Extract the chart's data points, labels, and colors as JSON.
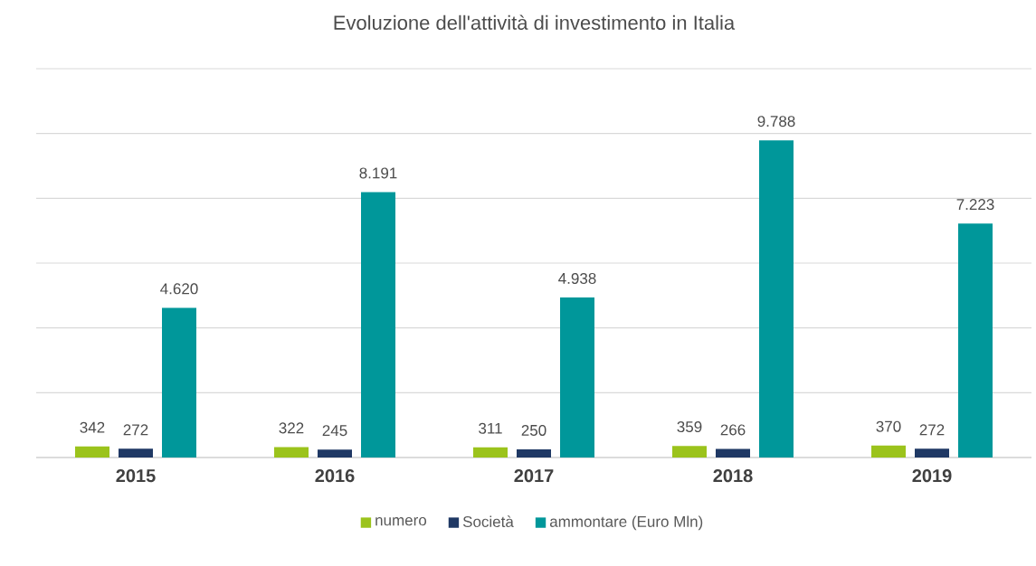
{
  "chart_data": {
    "type": "bar",
    "title": "Evoluzione dell'attività  di investimento in Italia",
    "categories": [
      "2015",
      "2016",
      "2017",
      "2018",
      "2019"
    ],
    "series": [
      {
        "name": "numero",
        "color": "#9bc31c",
        "values": [
          342,
          322,
          311,
          359,
          370
        ],
        "value_labels": [
          "342",
          "322",
          "311",
          "359",
          "370"
        ]
      },
      {
        "name": "Società",
        "color": "#1f3864",
        "values": [
          272,
          245,
          250,
          266,
          272
        ],
        "value_labels": [
          "272",
          "245",
          "250",
          "266",
          "272"
        ]
      },
      {
        "name": "ammontare (Euro Mln)",
        "color": "#00979a",
        "values": [
          4620,
          8191,
          4938,
          9788,
          7223
        ],
        "value_labels": [
          "4.620",
          "8.191",
          "4.938",
          "9.788",
          "7.223"
        ]
      }
    ],
    "ylim": [
      0,
      12000
    ],
    "yticks": [
      {
        "value": 0,
        "label": null
      },
      {
        "value": 2000,
        "label": null
      },
      {
        "value": 4000,
        "label": null
      },
      {
        "value": 6000,
        "label": null
      },
      {
        "value": 8000,
        "label": null
      },
      {
        "value": 10000,
        "label": null
      },
      {
        "value": 12000,
        "label": null
      }
    ],
    "tick_labels": "x",
    "grid": "y",
    "legend": "bottom"
  }
}
